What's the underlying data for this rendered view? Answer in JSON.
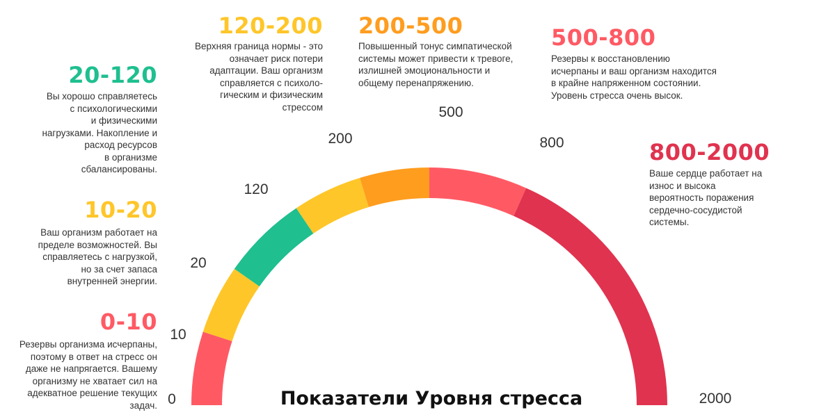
{
  "colors": {
    "red": "#ff5a64",
    "yellow": "#ffc62a",
    "green": "#1fbf8f",
    "orange": "#ff9d1f",
    "crimson": "#e0334f"
  },
  "chart_data": {
    "type": "gauge",
    "title": "Показатели Уровня стресса",
    "ticks": [
      "0",
      "10",
      "20",
      "120",
      "200",
      "500",
      "800",
      "2000"
    ],
    "segments": [
      {
        "range": "0-10",
        "from": 0,
        "to": 10,
        "color": "#ff5a64",
        "text": "Резервы организма исчерпаны,\nпоэтому в ответ на стресс он\nдаже не напрягается. Вашему\nорганизму не хватает сил на\nадекватное решение текущих\nзадач."
      },
      {
        "range": "10-20",
        "from": 10,
        "to": 20,
        "color": "#ffc62a",
        "text": "Ваш организм работает на\nпределе возможностей. Вы\nсправляетесь с нагрузкой,\nно за счет запаса\nвнутренней энергии."
      },
      {
        "range": "20-120",
        "from": 20,
        "to": 120,
        "color": "#1fbf8f",
        "text": "Вы хорошо справляетесь\nс психологическими\nи физическими\nнагрузками. Накопление и\nрасход ресурсов\nв организме\nсбалансированы."
      },
      {
        "range": "120-200",
        "from": 120,
        "to": 200,
        "color": "#ffc62a",
        "text": "Верхняя граница нормы - это\nозначает риск потери\nадаптации. Ваш организм\nсправляется с психоло-\nгическим и физическим\nстрессом"
      },
      {
        "range": "200-500",
        "from": 200,
        "to": 500,
        "color": "#ff9d1f",
        "text": "Повышенный тонус симпатической\nсистемы может привести к тревоге,\nизлишней эмоциональности и\nобщему перенапряжению."
      },
      {
        "range": "500-800",
        "from": 500,
        "to": 800,
        "color": "#ff5a64",
        "text": "Резервы к восстановлению\nисчерпаны и ваш организм находится\nв крайне напряженном состоянии.\nУровень стресса очень высок."
      },
      {
        "range": "800-2000",
        "from": 800,
        "to": 2000,
        "color": "#e0334f",
        "text": "Ваше сердце работает на\nизнос и высока\nвероятность поражения\nсердечно-сосудистой\nсистемы."
      }
    ]
  }
}
